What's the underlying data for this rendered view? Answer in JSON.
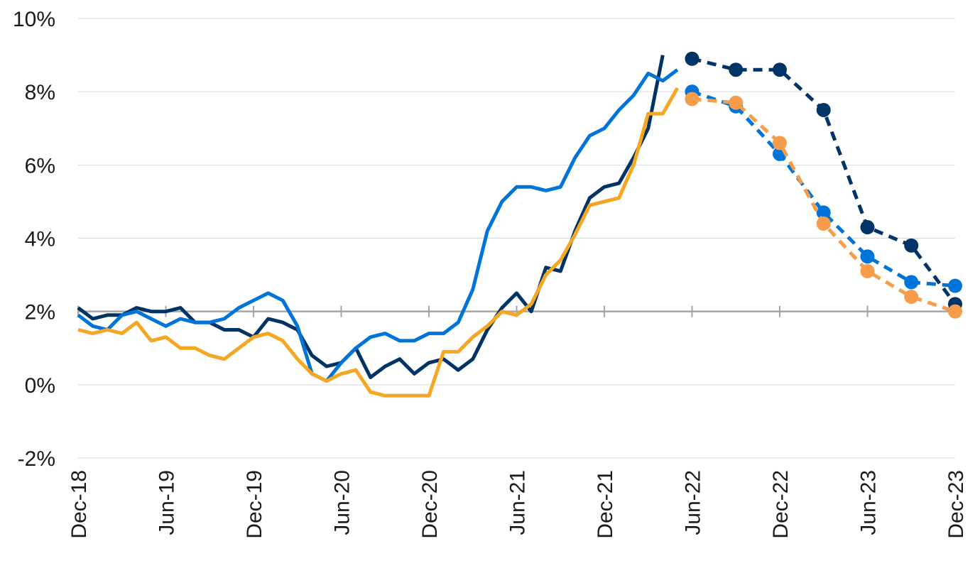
{
  "chart_data": {
    "type": "line",
    "title": "",
    "xlabel": "",
    "ylabel": "",
    "ylim": [
      -2,
      10
    ],
    "y_ticks": [
      "-2%",
      "0%",
      "2%",
      "4%",
      "6%",
      "8%",
      "10%"
    ],
    "y_tick_values": [
      -2,
      0,
      2,
      4,
      6,
      8,
      10
    ],
    "x_ticks": [
      "Dec-18",
      "Jun-19",
      "Dec-19",
      "Jun-20",
      "Dec-20",
      "Jun-21",
      "Dec-21",
      "Jun-22",
      "Dec-22",
      "Jun-23",
      "Dec-23"
    ],
    "x_tick_months": [
      0,
      6,
      12,
      18,
      24,
      30,
      36,
      42,
      48,
      54,
      60
    ],
    "x_unit": "months since Dec-18",
    "grid": "horizontal",
    "legend": "none",
    "reference_line": 2,
    "series": [
      {
        "color": "#003366",
        "style": "solid",
        "x": [
          0,
          1,
          2,
          3,
          4,
          5,
          6,
          7,
          8,
          9,
          10,
          11,
          12,
          13,
          14,
          15,
          16,
          17,
          18,
          19,
          20,
          21,
          22,
          23,
          24,
          25,
          26,
          27,
          28,
          29,
          30,
          31,
          32,
          33,
          34,
          35,
          36,
          37,
          38,
          39,
          40
        ],
        "values": [
          2.1,
          1.8,
          1.9,
          1.9,
          2.1,
          2.0,
          2.0,
          2.1,
          1.7,
          1.7,
          1.5,
          1.5,
          1.3,
          1.8,
          1.7,
          1.5,
          0.8,
          0.5,
          0.6,
          1.0,
          0.2,
          0.5,
          0.7,
          0.3,
          0.6,
          0.7,
          0.4,
          0.7,
          1.5,
          2.1,
          2.5,
          2.0,
          3.2,
          3.1,
          4.2,
          5.1,
          5.4,
          5.5,
          6.2,
          7.0,
          9.0
        ]
      },
      {
        "color": "#003366",
        "style": "dashed",
        "x": [
          42,
          45,
          48,
          51,
          54,
          57,
          60
        ],
        "values": [
          8.9,
          8.6,
          8.6,
          7.5,
          4.3,
          3.8,
          2.2
        ]
      },
      {
        "color": "#0074d9",
        "style": "solid",
        "x": [
          0,
          1,
          2,
          3,
          4,
          5,
          6,
          7,
          8,
          9,
          10,
          11,
          12,
          13,
          14,
          15,
          16,
          17,
          18,
          19,
          20,
          21,
          22,
          23,
          24,
          25,
          26,
          27,
          28,
          29,
          30,
          31,
          32,
          33,
          34,
          35,
          36,
          37,
          38,
          39,
          40,
          41
        ],
        "values": [
          1.9,
          1.6,
          1.5,
          1.9,
          2.0,
          1.8,
          1.6,
          1.8,
          1.7,
          1.7,
          1.8,
          2.1,
          2.3,
          2.5,
          2.3,
          1.6,
          0.3,
          0.1,
          0.6,
          1.0,
          1.3,
          1.4,
          1.2,
          1.2,
          1.4,
          1.4,
          1.7,
          2.6,
          4.2,
          5.0,
          5.4,
          5.4,
          5.3,
          5.4,
          6.2,
          6.8,
          7.0,
          7.5,
          7.9,
          8.5,
          8.3,
          8.6
        ]
      },
      {
        "color": "#0074d9",
        "style": "dashed",
        "x": [
          42,
          45,
          48,
          51,
          54,
          57,
          60
        ],
        "values": [
          8.0,
          7.6,
          6.3,
          4.7,
          3.5,
          2.8,
          2.7
        ]
      },
      {
        "color": "#f5a623",
        "style": "solid",
        "x": [
          0,
          1,
          2,
          3,
          4,
          5,
          6,
          7,
          8,
          9,
          10,
          11,
          12,
          13,
          14,
          15,
          16,
          17,
          18,
          19,
          20,
          21,
          22,
          23,
          24,
          25,
          26,
          27,
          28,
          29,
          30,
          31,
          32,
          33,
          34,
          35,
          36,
          37,
          38,
          39,
          40,
          41
        ],
        "values": [
          1.5,
          1.4,
          1.5,
          1.4,
          1.7,
          1.2,
          1.3,
          1.0,
          1.0,
          0.8,
          0.7,
          1.0,
          1.3,
          1.4,
          1.2,
          0.7,
          0.3,
          0.1,
          0.3,
          0.4,
          -0.2,
          -0.3,
          -0.3,
          -0.3,
          -0.3,
          0.9,
          0.9,
          1.3,
          1.6,
          2.0,
          1.9,
          2.2,
          3.0,
          3.4,
          4.1,
          4.9,
          5.0,
          5.1,
          6.0,
          7.4,
          7.4,
          8.1
        ]
      },
      {
        "color": "#f59d4a",
        "style": "dashed",
        "x": [
          42,
          45,
          48,
          51,
          54,
          57,
          60
        ],
        "values": [
          7.8,
          7.7,
          6.6,
          4.4,
          3.1,
          2.4,
          2.0
        ]
      }
    ]
  }
}
